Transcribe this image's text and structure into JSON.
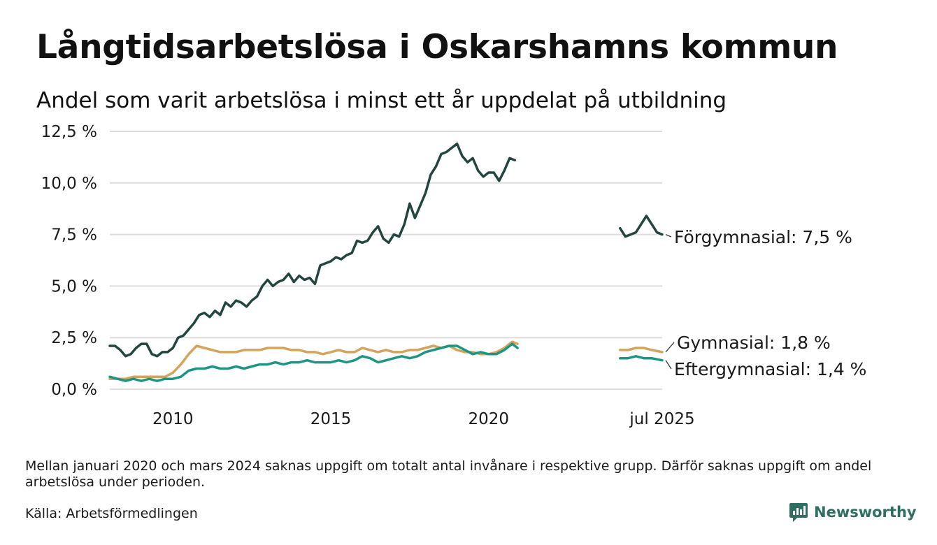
{
  "header": {
    "title": "Långtidsarbetslösa i Oskarshamns kommun",
    "subtitle": "Andel som varit arbetslösa i minst ett år uppdelat på utbildning"
  },
  "footer": {
    "note": "Mellan januari 2020 och mars 2024 saknas uppgift om totalt antal invånare i respektive grupp. Därför saknas uppgift om andel arbetslösa under perioden.",
    "source": "Källa: Arbetsförmedlingen",
    "brand": "Newsworthy"
  },
  "colors": {
    "forgymnasial": "#22463f",
    "gymnasial": "#d4a45c",
    "eftergymnasial": "#1c9683",
    "gridline": "#dddddd",
    "brand": "#2e6f62"
  },
  "icons": [
    "newsworthy-logo-icon"
  ],
  "chart_data": {
    "type": "line",
    "title": "Långtidsarbetslösa i Oskarshamns kommun",
    "subtitle": "Andel som varit arbetslösa i minst ett år uppdelat på utbildning",
    "x_ticks": [
      "2010",
      "2015",
      "2020",
      "jul 2025"
    ],
    "y_ticks": [
      "0,0 %",
      "2,5 %",
      "5,0 %",
      "7,5 %",
      "10,0 %",
      "12,5 %"
    ],
    "ylim": [
      0,
      12.5
    ],
    "xlim": [
      "2008-01",
      "2025-07"
    ],
    "grid": "horizontal",
    "legend": "direct labels at line ends (right)",
    "gap": [
      "2020-01",
      "2024-03"
    ],
    "series": [
      {
        "name": "Förgymnasial",
        "end_label": "Förgymnasial: 7,5 %",
        "color": "#22463f",
        "segments": [
          [
            [
              "2008-01",
              2.1
            ],
            [
              "2008-03",
              2.1
            ],
            [
              "2008-05",
              1.9
            ],
            [
              "2008-07",
              1.6
            ],
            [
              "2008-09",
              1.7
            ],
            [
              "2008-11",
              2.0
            ],
            [
              "2009-01",
              2.2
            ],
            [
              "2009-03",
              2.2
            ],
            [
              "2009-05",
              1.7
            ],
            [
              "2009-07",
              1.6
            ],
            [
              "2009-09",
              1.8
            ],
            [
              "2009-11",
              1.8
            ],
            [
              "2010-01",
              2.0
            ],
            [
              "2010-03",
              2.5
            ],
            [
              "2010-05",
              2.6
            ],
            [
              "2010-07",
              2.9
            ],
            [
              "2010-09",
              3.2
            ],
            [
              "2010-11",
              3.6
            ],
            [
              "2011-01",
              3.7
            ],
            [
              "2011-03",
              3.5
            ],
            [
              "2011-05",
              3.8
            ],
            [
              "2011-07",
              3.6
            ],
            [
              "2011-09",
              4.2
            ],
            [
              "2011-11",
              4.0
            ],
            [
              "2012-01",
              4.3
            ],
            [
              "2012-03",
              4.2
            ],
            [
              "2012-05",
              4.0
            ],
            [
              "2012-07",
              4.3
            ],
            [
              "2012-09",
              4.5
            ],
            [
              "2012-11",
              5.0
            ],
            [
              "2013-01",
              5.3
            ],
            [
              "2013-03",
              5.0
            ],
            [
              "2013-05",
              5.2
            ],
            [
              "2013-07",
              5.3
            ],
            [
              "2013-09",
              5.6
            ],
            [
              "2013-11",
              5.2
            ],
            [
              "2014-01",
              5.5
            ],
            [
              "2014-03",
              5.3
            ],
            [
              "2014-05",
              5.4
            ],
            [
              "2014-07",
              5.1
            ],
            [
              "2014-09",
              6.0
            ],
            [
              "2014-11",
              6.1
            ],
            [
              "2015-01",
              6.2
            ],
            [
              "2015-03",
              6.4
            ],
            [
              "2015-05",
              6.3
            ],
            [
              "2015-07",
              6.5
            ],
            [
              "2015-09",
              6.6
            ],
            [
              "2015-11",
              7.2
            ],
            [
              "2016-01",
              7.1
            ],
            [
              "2016-03",
              7.2
            ],
            [
              "2016-05",
              7.6
            ],
            [
              "2016-07",
              7.9
            ],
            [
              "2016-09",
              7.3
            ],
            [
              "2016-11",
              7.1
            ],
            [
              "2017-01",
              7.5
            ],
            [
              "2017-03",
              7.4
            ],
            [
              "2017-05",
              8.0
            ],
            [
              "2017-07",
              9.0
            ],
            [
              "2017-09",
              8.3
            ],
            [
              "2017-11",
              8.9
            ],
            [
              "2018-01",
              9.5
            ],
            [
              "2018-03",
              10.4
            ],
            [
              "2018-05",
              10.8
            ],
            [
              "2018-07",
              11.4
            ],
            [
              "2018-09",
              11.5
            ],
            [
              "2018-11",
              11.7
            ],
            [
              "2019-01",
              11.9
            ],
            [
              "2019-03",
              11.3
            ],
            [
              "2019-05",
              11.0
            ],
            [
              "2019-07",
              11.2
            ],
            [
              "2019-09",
              10.6
            ],
            [
              "2019-11",
              10.3
            ],
            [
              "2020-01",
              10.5
            ],
            [
              "2020-03",
              10.5
            ],
            [
              "2020-05",
              10.1
            ],
            [
              "2020-07",
              10.6
            ],
            [
              "2020-09",
              11.2
            ],
            [
              "2020-11",
              11.1
            ]
          ],
          [
            [
              "2024-03",
              7.8
            ],
            [
              "2024-05",
              7.4
            ],
            [
              "2024-07",
              7.5
            ],
            [
              "2024-09",
              7.6
            ],
            [
              "2024-11",
              8.0
            ],
            [
              "2025-01",
              8.4
            ],
            [
              "2025-03",
              8.0
            ],
            [
              "2025-05",
              7.6
            ],
            [
              "2025-07",
              7.5
            ]
          ]
        ]
      },
      {
        "name": "Gymnasial",
        "end_label": "Gymnasial: 1,8 %",
        "color": "#d4a45c",
        "segments": [
          [
            [
              "2008-01",
              0.5
            ],
            [
              "2008-04",
              0.5
            ],
            [
              "2008-07",
              0.5
            ],
            [
              "2008-10",
              0.6
            ],
            [
              "2009-01",
              0.6
            ],
            [
              "2009-04",
              0.6
            ],
            [
              "2009-07",
              0.6
            ],
            [
              "2009-10",
              0.6
            ],
            [
              "2010-01",
              0.8
            ],
            [
              "2010-04",
              1.2
            ],
            [
              "2010-07",
              1.7
            ],
            [
              "2010-10",
              2.1
            ],
            [
              "2011-01",
              2.0
            ],
            [
              "2011-04",
              1.9
            ],
            [
              "2011-07",
              1.8
            ],
            [
              "2011-10",
              1.8
            ],
            [
              "2012-01",
              1.8
            ],
            [
              "2012-04",
              1.9
            ],
            [
              "2012-07",
              1.9
            ],
            [
              "2012-10",
              1.9
            ],
            [
              "2013-01",
              2.0
            ],
            [
              "2013-04",
              2.0
            ],
            [
              "2013-07",
              2.0
            ],
            [
              "2013-10",
              1.9
            ],
            [
              "2014-01",
              1.9
            ],
            [
              "2014-04",
              1.8
            ],
            [
              "2014-07",
              1.8
            ],
            [
              "2014-10",
              1.7
            ],
            [
              "2015-01",
              1.8
            ],
            [
              "2015-04",
              1.9
            ],
            [
              "2015-07",
              1.8
            ],
            [
              "2015-10",
              1.8
            ],
            [
              "2016-01",
              2.0
            ],
            [
              "2016-04",
              1.9
            ],
            [
              "2016-07",
              1.8
            ],
            [
              "2016-10",
              1.9
            ],
            [
              "2017-01",
              1.8
            ],
            [
              "2017-04",
              1.8
            ],
            [
              "2017-07",
              1.9
            ],
            [
              "2017-10",
              1.9
            ],
            [
              "2018-01",
              2.0
            ],
            [
              "2018-04",
              2.1
            ],
            [
              "2018-07",
              2.0
            ],
            [
              "2018-10",
              2.1
            ],
            [
              "2019-01",
              1.9
            ],
            [
              "2019-04",
              1.8
            ],
            [
              "2019-07",
              1.8
            ],
            [
              "2019-10",
              1.7
            ],
            [
              "2020-01",
              1.7
            ],
            [
              "2020-04",
              1.8
            ],
            [
              "2020-07",
              2.0
            ],
            [
              "2020-10",
              2.3
            ],
            [
              "2020-12",
              2.2
            ]
          ],
          [
            [
              "2024-03",
              1.9
            ],
            [
              "2024-06",
              1.9
            ],
            [
              "2024-09",
              2.0
            ],
            [
              "2024-12",
              2.0
            ],
            [
              "2025-03",
              1.9
            ],
            [
              "2025-07",
              1.8
            ]
          ]
        ]
      },
      {
        "name": "Eftergymnasial",
        "end_label": "Eftergymnasial: 1,4 %",
        "color": "#1c9683",
        "segments": [
          [
            [
              "2008-01",
              0.6
            ],
            [
              "2008-04",
              0.5
            ],
            [
              "2008-07",
              0.4
            ],
            [
              "2008-10",
              0.5
            ],
            [
              "2009-01",
              0.4
            ],
            [
              "2009-04",
              0.5
            ],
            [
              "2009-07",
              0.4
            ],
            [
              "2009-10",
              0.5
            ],
            [
              "2010-01",
              0.5
            ],
            [
              "2010-04",
              0.6
            ],
            [
              "2010-07",
              0.9
            ],
            [
              "2010-10",
              1.0
            ],
            [
              "2011-01",
              1.0
            ],
            [
              "2011-04",
              1.1
            ],
            [
              "2011-07",
              1.0
            ],
            [
              "2011-10",
              1.0
            ],
            [
              "2012-01",
              1.1
            ],
            [
              "2012-04",
              1.0
            ],
            [
              "2012-07",
              1.1
            ],
            [
              "2012-10",
              1.2
            ],
            [
              "2013-01",
              1.2
            ],
            [
              "2013-04",
              1.3
            ],
            [
              "2013-07",
              1.2
            ],
            [
              "2013-10",
              1.3
            ],
            [
              "2014-01",
              1.3
            ],
            [
              "2014-04",
              1.4
            ],
            [
              "2014-07",
              1.3
            ],
            [
              "2014-10",
              1.3
            ],
            [
              "2015-01",
              1.3
            ],
            [
              "2015-04",
              1.4
            ],
            [
              "2015-07",
              1.3
            ],
            [
              "2015-10",
              1.4
            ],
            [
              "2016-01",
              1.6
            ],
            [
              "2016-04",
              1.5
            ],
            [
              "2016-07",
              1.3
            ],
            [
              "2016-10",
              1.4
            ],
            [
              "2017-01",
              1.5
            ],
            [
              "2017-04",
              1.6
            ],
            [
              "2017-07",
              1.5
            ],
            [
              "2017-10",
              1.6
            ],
            [
              "2018-01",
              1.8
            ],
            [
              "2018-04",
              1.9
            ],
            [
              "2018-07",
              2.0
            ],
            [
              "2018-10",
              2.1
            ],
            [
              "2019-01",
              2.1
            ],
            [
              "2019-04",
              1.9
            ],
            [
              "2019-07",
              1.7
            ],
            [
              "2019-10",
              1.8
            ],
            [
              "2020-01",
              1.7
            ],
            [
              "2020-04",
              1.7
            ],
            [
              "2020-07",
              1.9
            ],
            [
              "2020-10",
              2.2
            ],
            [
              "2020-12",
              2.0
            ]
          ],
          [
            [
              "2024-03",
              1.5
            ],
            [
              "2024-06",
              1.5
            ],
            [
              "2024-09",
              1.6
            ],
            [
              "2024-12",
              1.5
            ],
            [
              "2025-03",
              1.5
            ],
            [
              "2025-07",
              1.4
            ]
          ]
        ]
      }
    ]
  }
}
